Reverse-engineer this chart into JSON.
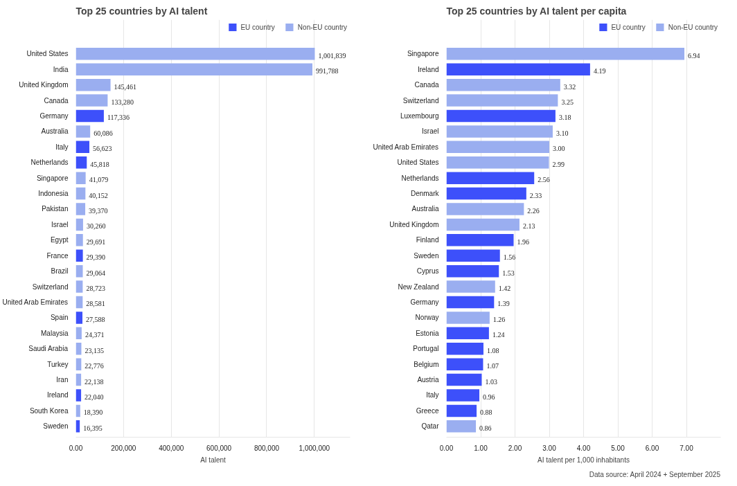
{
  "chart_data": [
    {
      "type": "bar",
      "orientation": "horizontal",
      "title": "Top 25 countries by AI talent",
      "xlabel": "AI talent",
      "categories": [
        "United States",
        "India",
        "United Kingdom",
        "Canada",
        "Germany",
        "Australia",
        "Italy",
        "Netherlands",
        "Singapore",
        "Indonesia",
        "Pakistan",
        "Israel",
        "Egypt",
        "France",
        "Brazil",
        "Switzerland",
        "United Arab Emirates",
        "Spain",
        "Malaysia",
        "Saudi Arabia",
        "Turkey",
        "Iran",
        "Ireland",
        "South Korea",
        "Sweden"
      ],
      "series": [
        {
          "name": "EU country",
          "color": "#3d50fa",
          "values": [
            null,
            null,
            null,
            null,
            117336,
            null,
            56623,
            45818,
            null,
            null,
            null,
            null,
            null,
            29390,
            null,
            null,
            null,
            27588,
            null,
            null,
            null,
            null,
            22040,
            null,
            16395
          ],
          "value_labels": [
            null,
            null,
            null,
            null,
            "117,336",
            null,
            "56,623",
            "45,818",
            null,
            null,
            null,
            null,
            null,
            "29,390",
            null,
            null,
            null,
            "27,588",
            null,
            null,
            null,
            null,
            "22,040",
            null,
            "16,395"
          ]
        },
        {
          "name": "Non-EU country",
          "color": "#9aaef0",
          "values": [
            1001839,
            991788,
            145461,
            133280,
            null,
            60086,
            null,
            null,
            41079,
            40152,
            39370,
            30260,
            29691,
            null,
            29064,
            28723,
            28581,
            null,
            24371,
            23135,
            22776,
            22138,
            null,
            18390,
            null
          ],
          "value_labels": [
            "1,001,839",
            "991,788",
            "145,461",
            "133,280",
            null,
            "60,086",
            null,
            null,
            "41,079",
            "40,152",
            "39,370",
            "30,260",
            "29,691",
            null,
            "29,064",
            "28,723",
            "28,581",
            null,
            "24,371",
            "23,135",
            "22,776",
            "22,138",
            null,
            "18,390",
            null
          ]
        }
      ],
      "xlim": [
        0,
        1150000
      ],
      "xticks": [
        {
          "value": 0,
          "label": "0.00"
        },
        {
          "value": 200000,
          "label": "200,000"
        },
        {
          "value": 400000,
          "label": "400,000"
        },
        {
          "value": 600000,
          "label": "600,000"
        },
        {
          "value": 800000,
          "label": "800,000"
        },
        {
          "value": 1000000,
          "label": "1,000,000"
        }
      ],
      "grid": "x",
      "legend": "top right"
    },
    {
      "type": "bar",
      "orientation": "horizontal",
      "title": "Top 25 countries by AI talent per capita",
      "xlabel": "AI talent per 1,000 inhabitants",
      "categories": [
        "Singapore",
        "Ireland",
        "Canada",
        "Switzerland",
        "Luxembourg",
        "Israel",
        "United Arab Emirates",
        "United States",
        "Netherlands",
        "Denmark",
        "Australia",
        "United Kingdom",
        "Finland",
        "Sweden",
        "Cyprus",
        "New Zealand",
        "Germany",
        "Norway",
        "Estonia",
        "Portugal",
        "Belgium",
        "Austria",
        "Italy",
        "Greece",
        "Qatar"
      ],
      "series": [
        {
          "name": "EU country",
          "color": "#3d50fa",
          "values": [
            null,
            4.19,
            null,
            null,
            3.18,
            null,
            null,
            null,
            2.56,
            2.33,
            null,
            null,
            1.96,
            1.56,
            1.53,
            null,
            1.39,
            null,
            1.24,
            1.08,
            1.07,
            1.03,
            0.96,
            0.88,
            null
          ],
          "value_labels": [
            null,
            "4.19",
            null,
            null,
            "3.18",
            null,
            null,
            null,
            "2.56",
            "2.33",
            null,
            null,
            "1.96",
            "1.56",
            "1.53",
            null,
            "1.39",
            null,
            "1.24",
            "1.08",
            "1.07",
            "1.03",
            "0.96",
            "0.88",
            null
          ]
        },
        {
          "name": "Non-EU country",
          "color": "#9aaef0",
          "values": [
            6.94,
            null,
            3.32,
            3.25,
            null,
            3.1,
            3.0,
            2.99,
            null,
            null,
            2.26,
            2.13,
            null,
            null,
            null,
            1.42,
            null,
            1.26,
            null,
            null,
            null,
            null,
            null,
            null,
            0.86
          ],
          "value_labels": [
            "6.94",
            null,
            "3.32",
            "3.25",
            null,
            "3.10",
            "3.00",
            "2.99",
            null,
            null,
            "2.26",
            "2.13",
            null,
            null,
            null,
            "1.42",
            null,
            "1.26",
            null,
            null,
            null,
            null,
            null,
            null,
            "0.86"
          ]
        }
      ],
      "xlim": [
        0,
        8
      ],
      "xticks": [
        {
          "value": 0,
          "label": "0.00"
        },
        {
          "value": 1,
          "label": "1.00"
        },
        {
          "value": 2,
          "label": "2.00"
        },
        {
          "value": 3,
          "label": "3.00"
        },
        {
          "value": 4,
          "label": "4.00"
        },
        {
          "value": 5,
          "label": "5.00"
        },
        {
          "value": 6,
          "label": "6.00"
        },
        {
          "value": 7,
          "label": "7.00"
        }
      ],
      "grid": "x",
      "legend": "top right",
      "annotations": [
        "Data source: April 2024 + September 2025"
      ]
    }
  ]
}
